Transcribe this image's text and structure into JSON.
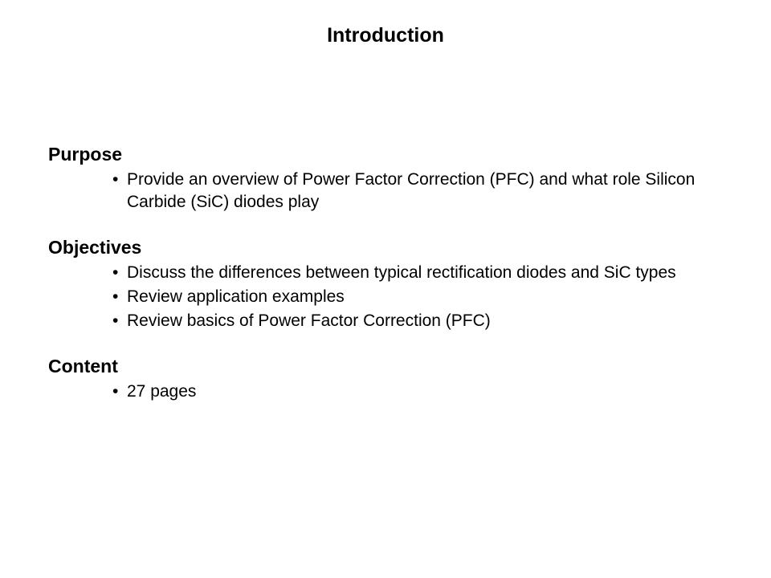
{
  "slide": {
    "title": "Introduction",
    "sections": [
      {
        "heading": "Purpose",
        "items": [
          "Provide an overview of Power Factor Correction (PFC) and what role Silicon Carbide (SiC) diodes play"
        ]
      },
      {
        "heading": "Objectives",
        "items": [
          "Discuss the differences between typical rectification diodes and SiC types",
          "Review application examples",
          "Review basics of Power Factor Correction (PFC)"
        ]
      },
      {
        "heading": "Content",
        "items": [
          "27 pages"
        ]
      }
    ],
    "styling": {
      "background_color": "#ffffff",
      "text_color": "#000000",
      "title_fontsize": 25,
      "heading_fontsize": 23,
      "body_fontsize": 21,
      "font_family": "Verdana"
    }
  }
}
